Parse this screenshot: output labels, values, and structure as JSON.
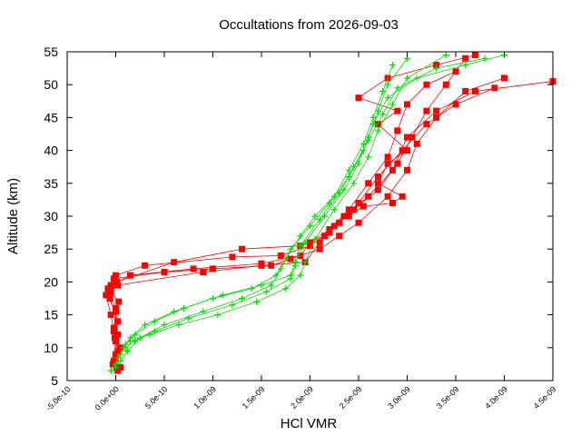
{
  "chart_data": {
    "type": "line",
    "title": "Occultations from 2026-09-03",
    "xlabel": "HCl VMR",
    "ylabel": "Altitude (km)",
    "xlim": [
      -5e-10,
      4.5e-09
    ],
    "ylim": [
      5,
      55
    ],
    "x_ticks": [
      -5e-10,
      0,
      5e-10,
      1e-09,
      1.5e-09,
      2e-09,
      2.5e-09,
      3e-09,
      3.5e-09,
      4e-09,
      4.5e-09
    ],
    "x_tick_labels": [
      "-5.0e-10",
      "0.0e+00",
      "5.0e-10",
      "1.0e-09",
      "1.5e-09",
      "2.0e-09",
      "2.5e-09",
      "3.0e-09",
      "3.5e-09",
      "4.0e-09",
      "4.5e-09"
    ],
    "y_ticks": [
      5,
      10,
      15,
      20,
      25,
      30,
      35,
      40,
      45,
      50,
      55
    ],
    "y_tick_labels": [
      "5",
      "10",
      "15",
      "20",
      "25",
      "30",
      "35",
      "40",
      "45",
      "50",
      "55"
    ],
    "grid": false,
    "legend": "none",
    "series_colors": {
      "red": "#ff0000",
      "green": "#00dd00"
    },
    "series": [
      {
        "marker": "square",
        "color": "#ff0000",
        "points": [
          [
            2e-11,
            6.5
          ],
          [
            -2e-11,
            8.0
          ],
          [
            0.0,
            11.0
          ],
          [
            -5e-11,
            15.0
          ],
          [
            -1e-10,
            18.0
          ],
          [
            -5e-11,
            19.5
          ],
          [
            1.5e-10,
            21.0
          ],
          [
            8e-10,
            22.0
          ],
          [
            1.5e-09,
            22.8
          ],
          [
            1.9e-09,
            24.0
          ],
          [
            2e-09,
            26.0
          ],
          [
            2.2e-09,
            28.0
          ],
          [
            2.4e-09,
            31.0
          ],
          [
            2.6e-09,
            35.0
          ],
          [
            2.8e-09,
            39.0
          ],
          [
            2.9e-09,
            43.0
          ],
          [
            3e-09,
            47.0
          ],
          [
            3.2e-09,
            50.0
          ],
          [
            3.5e-09,
            52.0
          ]
        ]
      },
      {
        "marker": "square",
        "color": "#ff0000",
        "points": [
          [
            5e-11,
            7.0
          ],
          [
            0.0,
            9.0
          ],
          [
            2e-11,
            12.0
          ],
          [
            0.0,
            16.0
          ],
          [
            -8e-11,
            19.0
          ],
          [
            -2e-11,
            20.5
          ],
          [
            5e-10,
            21.5
          ],
          [
            1e-09,
            22.0
          ],
          [
            1.6e-09,
            22.5
          ],
          [
            1.8e-09,
            23.5
          ],
          [
            2.1e-09,
            25.0
          ],
          [
            2.3e-09,
            27.0
          ],
          [
            2.5e-09,
            29.0
          ],
          [
            2.8e-09,
            33.0
          ],
          [
            3e-09,
            37.0
          ],
          [
            3.1e-09,
            41.0
          ],
          [
            3.3e-09,
            45.0
          ],
          [
            3.6e-09,
            49.0
          ],
          [
            4e-09,
            51.0
          ]
        ]
      },
      {
        "marker": "square",
        "color": "#ff0000",
        "points": [
          [
            -3e-11,
            7.5
          ],
          [
            5e-11,
            10.0
          ],
          [
            -2e-11,
            13.0
          ],
          [
            3e-11,
            17.0
          ],
          [
            -5e-11,
            18.5
          ],
          [
            0.0,
            21.0
          ],
          [
            3e-10,
            22.5
          ],
          [
            1.2e-09,
            23.8
          ],
          [
            1.7e-09,
            24.0
          ],
          [
            2e-09,
            25.5
          ],
          [
            2.2e-09,
            27.5
          ],
          [
            2.35e-09,
            30.0
          ],
          [
            2.6e-09,
            33.0
          ],
          [
            2.85e-09,
            37.0
          ],
          [
            3e-09,
            42.0
          ],
          [
            3.3e-09,
            46.0
          ],
          [
            3.7e-09,
            49.0
          ],
          [
            4.5e-09,
            50.5
          ]
        ]
      },
      {
        "marker": "square",
        "color": "#ff0000",
        "points": [
          [
            0.0,
            8.5
          ],
          [
            -1e-11,
            11.5
          ],
          [
            2e-11,
            14.0
          ],
          [
            -6e-11,
            17.5
          ],
          [
            1e-11,
            20.0
          ],
          [
            6e-10,
            23.0
          ],
          [
            1.3e-09,
            25.0
          ],
          [
            1.9e-09,
            25.5
          ],
          [
            2.15e-09,
            27.0
          ],
          [
            2.3e-09,
            29.0
          ],
          [
            2.5e-09,
            32.0
          ],
          [
            2.7e-09,
            36.0
          ],
          [
            2.95e-09,
            40.0
          ],
          [
            3.2e-09,
            44.0
          ],
          [
            3.5e-09,
            47.0
          ],
          [
            3.9e-09,
            49.5
          ]
        ]
      },
      {
        "marker": "square",
        "color": "#ff0000",
        "points": [
          [
            1e-11,
            7.0
          ],
          [
            3e-11,
            9.5
          ],
          [
            -2e-11,
            12.5
          ],
          [
            0.0,
            15.5
          ],
          [
            -9e-11,
            18.0
          ],
          [
            2e-11,
            19.5
          ],
          [
            9e-10,
            21.5
          ],
          [
            1.5e-09,
            22.5
          ],
          [
            1.95e-09,
            23.0
          ],
          [
            2.1e-09,
            26.0
          ],
          [
            2.25e-09,
            28.5
          ],
          [
            2.45e-09,
            31.0
          ],
          [
            2.7e-09,
            34.0
          ],
          [
            2.9e-09,
            38.0
          ],
          [
            3.05e-09,
            42.0
          ],
          [
            3.2e-09,
            46.0
          ],
          [
            3.4e-09,
            50.0
          ],
          [
            3.6e-09,
            54.0
          ]
        ]
      },
      {
        "marker": "square",
        "color": "#ff0000",
        "points": [
          [
            2.4e-09,
            30.0
          ],
          [
            2.55e-09,
            31.5
          ],
          [
            2.85e-09,
            32.0
          ],
          [
            2.95e-09,
            33.0
          ],
          [
            2.7e-09,
            35.0
          ],
          [
            2.8e-09,
            38.0
          ],
          [
            3e-09,
            40.0
          ],
          [
            2.7e-09,
            44.0
          ],
          [
            2.9e-09,
            46.0
          ],
          [
            2.5e-09,
            48.0
          ],
          [
            2.8e-09,
            51.0
          ],
          [
            3.3e-09,
            53.0
          ],
          [
            3.7e-09,
            54.5
          ]
        ]
      },
      {
        "marker": "plus",
        "color": "#00dd00",
        "points": [
          [
            -5e-11,
            6.5
          ],
          [
            0.0,
            7.5
          ],
          [
            5e-11,
            9.0
          ],
          [
            1e-10,
            10.5
          ],
          [
            2e-10,
            12.0
          ],
          [
            4e-10,
            14.0
          ],
          [
            7e-10,
            16.0
          ],
          [
            1.1e-09,
            18.0
          ],
          [
            1.5e-09,
            19.5
          ],
          [
            1.8e-09,
            21.0
          ],
          [
            1.85e-09,
            23.0
          ],
          [
            1.95e-09,
            26.0
          ],
          [
            2.15e-09,
            30.0
          ],
          [
            2.35e-09,
            34.0
          ],
          [
            2.5e-09,
            38.0
          ],
          [
            2.6e-09,
            42.0
          ],
          [
            2.7e-09,
            46.0
          ],
          [
            2.8e-09,
            50.0
          ],
          [
            3e-09,
            54.0
          ]
        ]
      },
      {
        "marker": "plus",
        "color": "#00dd00",
        "points": [
          [
            0.0,
            7.0
          ],
          [
            2e-11,
            8.5
          ],
          [
            8e-11,
            10.0
          ],
          [
            1.5e-10,
            11.5
          ],
          [
            3e-10,
            13.5
          ],
          [
            6e-10,
            15.5
          ],
          [
            1e-09,
            17.5
          ],
          [
            1.4e-09,
            19.0
          ],
          [
            1.65e-09,
            21.0
          ],
          [
            1.75e-09,
            23.5
          ],
          [
            1.9e-09,
            27.0
          ],
          [
            2.05e-09,
            30.0
          ],
          [
            2.25e-09,
            33.0
          ],
          [
            2.4e-09,
            37.0
          ],
          [
            2.55e-09,
            41.0
          ],
          [
            2.65e-09,
            45.0
          ],
          [
            2.75e-09,
            49.0
          ],
          [
            2.85e-09,
            53.0
          ]
        ]
      },
      {
        "marker": "plus",
        "color": "#00dd00",
        "points": [
          [
            5e-11,
            8.0
          ],
          [
            1.2e-10,
            9.5
          ],
          [
            2.5e-10,
            11.5
          ],
          [
            5e-10,
            13.5
          ],
          [
            9e-10,
            15.5
          ],
          [
            1.3e-09,
            17.5
          ],
          [
            1.6e-09,
            19.5
          ],
          [
            1.7e-09,
            22.0
          ],
          [
            1.8e-09,
            25.0
          ],
          [
            2e-09,
            28.5
          ],
          [
            2.2e-09,
            32.0
          ],
          [
            2.4e-09,
            36.0
          ],
          [
            2.55e-09,
            40.0
          ],
          [
            2.65e-09,
            44.0
          ],
          [
            2.8e-09,
            48.0
          ],
          [
            3.1e-09,
            51.0
          ],
          [
            3.6e-09,
            53.0
          ],
          [
            4e-09,
            54.5
          ]
        ]
      },
      {
        "marker": "plus",
        "color": "#00dd00",
        "points": [
          [
            1e-10,
            10.0
          ],
          [
            2e-10,
            11.0
          ],
          [
            4e-10,
            12.5
          ],
          [
            7.5e-10,
            14.5
          ],
          [
            1.2e-09,
            16.5
          ],
          [
            1.55e-09,
            18.5
          ],
          [
            1.8e-09,
            20.5
          ],
          [
            1.85e-09,
            22.5
          ],
          [
            1.9e-09,
            25.5
          ],
          [
            2.1e-09,
            29.5
          ],
          [
            2.3e-09,
            33.5
          ],
          [
            2.45e-09,
            37.5
          ],
          [
            2.6e-09,
            41.5
          ],
          [
            2.75e-09,
            45.5
          ],
          [
            2.9e-09,
            49.5
          ],
          [
            3.3e-09,
            52.5
          ],
          [
            3.8e-09,
            54.0
          ]
        ]
      },
      {
        "marker": "plus",
        "color": "#00dd00",
        "points": [
          [
            1.5e-10,
            11.0
          ],
          [
            3.5e-10,
            12.0
          ],
          [
            6.5e-10,
            13.5
          ],
          [
            1.05e-09,
            15.0
          ],
          [
            1.45e-09,
            17.0
          ],
          [
            1.75e-09,
            19.0
          ],
          [
            1.9e-09,
            21.0
          ],
          [
            1.95e-09,
            23.0
          ],
          [
            2.05e-09,
            26.5
          ],
          [
            2.25e-09,
            31.0
          ],
          [
            2.45e-09,
            35.0
          ],
          [
            2.6e-09,
            39.0
          ],
          [
            2.7e-09,
            43.0
          ],
          [
            2.85e-09,
            47.0
          ],
          [
            3e-09,
            51.0
          ],
          [
            3.4e-09,
            54.5
          ]
        ]
      }
    ]
  }
}
